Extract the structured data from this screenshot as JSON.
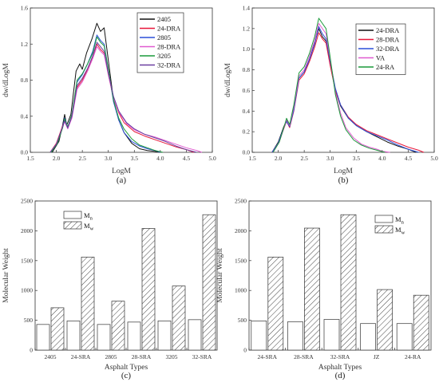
{
  "chart_data": [
    {
      "id": "a",
      "type": "line",
      "caption": "(a)",
      "xlabel": "LogM",
      "ylabel": "dw/dLogM",
      "xlim": [
        1.5,
        5.0
      ],
      "ylim": [
        0,
        1.6
      ],
      "xticks": [
        "1.5",
        "2.0",
        "2.5",
        "3.0",
        "3.5",
        "4.0",
        "4.5",
        "5.0"
      ],
      "yticks": [
        "0.0",
        "0.4",
        "0.8",
        "1.2",
        "1.6"
      ],
      "legend_position": "top-right",
      "series": [
        {
          "name": "2405",
          "color": "#111111",
          "x": [
            1.92,
            2.05,
            2.12,
            2.16,
            2.2,
            2.28,
            2.38,
            2.45,
            2.5,
            2.58,
            2.68,
            2.78,
            2.85,
            2.92,
            3.0,
            3.1,
            3.2,
            3.3,
            3.45,
            3.6,
            3.75,
            3.9,
            4.0
          ],
          "y": [
            0.0,
            0.12,
            0.3,
            0.42,
            0.3,
            0.42,
            0.9,
            0.98,
            0.92,
            1.1,
            1.25,
            1.43,
            1.34,
            1.38,
            1.02,
            0.58,
            0.36,
            0.22,
            0.1,
            0.04,
            0.02,
            0.01,
            0.0
          ]
        },
        {
          "name": "24-DRA",
          "color": "#e8173a",
          "x": [
            1.88,
            2.0,
            2.1,
            2.16,
            2.22,
            2.3,
            2.4,
            2.5,
            2.6,
            2.7,
            2.78,
            2.85,
            2.92,
            3.0,
            3.1,
            3.2,
            3.3,
            3.5,
            3.7,
            3.9,
            4.1,
            4.3,
            4.5,
            4.65
          ],
          "y": [
            0.0,
            0.1,
            0.26,
            0.36,
            0.27,
            0.4,
            0.72,
            0.8,
            0.92,
            1.06,
            1.2,
            1.14,
            1.1,
            0.86,
            0.6,
            0.44,
            0.33,
            0.23,
            0.18,
            0.14,
            0.1,
            0.06,
            0.03,
            0.0
          ]
        },
        {
          "name": "2805",
          "color": "#2b4fd8",
          "x": [
            1.9,
            2.02,
            2.12,
            2.16,
            2.22,
            2.3,
            2.4,
            2.5,
            2.6,
            2.7,
            2.78,
            2.85,
            2.92,
            3.0,
            3.1,
            3.2,
            3.3,
            3.45,
            3.6,
            3.75,
            3.9,
            4.0
          ],
          "y": [
            0.0,
            0.1,
            0.28,
            0.38,
            0.28,
            0.42,
            0.78,
            0.86,
            0.98,
            1.12,
            1.3,
            1.24,
            1.2,
            0.92,
            0.56,
            0.36,
            0.22,
            0.12,
            0.07,
            0.04,
            0.02,
            0.0
          ]
        },
        {
          "name": "28-DRA",
          "color": "#e05ad0",
          "x": [
            1.88,
            2.0,
            2.1,
            2.16,
            2.22,
            2.3,
            2.4,
            2.5,
            2.6,
            2.7,
            2.78,
            2.85,
            2.92,
            3.0,
            3.1,
            3.2,
            3.35,
            3.5,
            3.7,
            3.9,
            4.1,
            4.3,
            4.5,
            4.7,
            4.8
          ],
          "y": [
            0.0,
            0.09,
            0.24,
            0.34,
            0.26,
            0.38,
            0.7,
            0.78,
            0.9,
            1.04,
            1.17,
            1.12,
            1.08,
            0.86,
            0.6,
            0.45,
            0.32,
            0.25,
            0.2,
            0.17,
            0.13,
            0.09,
            0.05,
            0.02,
            0.0
          ]
        },
        {
          "name": "3205",
          "color": "#1a9a3a",
          "x": [
            1.9,
            2.02,
            2.12,
            2.16,
            2.22,
            2.3,
            2.4,
            2.5,
            2.6,
            2.7,
            2.78,
            2.85,
            2.92,
            3.0,
            3.1,
            3.2,
            3.3,
            3.45,
            3.6,
            3.75,
            3.9,
            4.05
          ],
          "y": [
            0.0,
            0.1,
            0.27,
            0.37,
            0.28,
            0.42,
            0.8,
            0.87,
            0.98,
            1.1,
            1.28,
            1.22,
            1.18,
            0.92,
            0.58,
            0.38,
            0.26,
            0.15,
            0.08,
            0.05,
            0.02,
            0.0
          ]
        },
        {
          "name": "32-DRA",
          "color": "#6a3fa0",
          "x": [
            1.88,
            2.0,
            2.1,
            2.16,
            2.22,
            2.3,
            2.4,
            2.5,
            2.6,
            2.7,
            2.78,
            2.85,
            2.92,
            3.0,
            3.1,
            3.2,
            3.35,
            3.5,
            3.7,
            3.9,
            4.1,
            4.3,
            4.5,
            4.7
          ],
          "y": [
            0.0,
            0.09,
            0.25,
            0.35,
            0.27,
            0.4,
            0.74,
            0.82,
            0.93,
            1.07,
            1.22,
            1.17,
            1.12,
            0.88,
            0.62,
            0.46,
            0.33,
            0.26,
            0.2,
            0.16,
            0.12,
            0.07,
            0.03,
            0.0
          ]
        }
      ]
    },
    {
      "id": "b",
      "type": "line",
      "caption": "(b)",
      "xlabel": "LogM",
      "ylabel": "dw/dLogM",
      "xlim": [
        1.5,
        5.0
      ],
      "ylim": [
        0,
        1.4
      ],
      "xticks": [
        "1.5",
        "2.0",
        "2.5",
        "3.0",
        "3.5",
        "4.0",
        "4.5",
        "5.0"
      ],
      "yticks": [
        "0.0",
        "0.2",
        "0.4",
        "0.6",
        "0.8",
        "1.0",
        "1.2",
        "1.4"
      ],
      "legend_position": "right",
      "series": [
        {
          "name": "24-DRA",
          "color": "#111111",
          "x": [
            1.88,
            2.0,
            2.1,
            2.16,
            2.22,
            2.3,
            2.4,
            2.5,
            2.6,
            2.7,
            2.78,
            2.85,
            2.92,
            3.0,
            3.1,
            3.2,
            3.35,
            3.5,
            3.7,
            3.9,
            4.1,
            4.3,
            4.5,
            4.65
          ],
          "y": [
            0.0,
            0.1,
            0.24,
            0.31,
            0.25,
            0.42,
            0.72,
            0.78,
            0.9,
            1.06,
            1.2,
            1.12,
            1.08,
            0.85,
            0.6,
            0.45,
            0.33,
            0.26,
            0.2,
            0.15,
            0.1,
            0.06,
            0.03,
            0.0
          ]
        },
        {
          "name": "28-DRA",
          "color": "#e8173a",
          "x": [
            1.88,
            2.0,
            2.1,
            2.16,
            2.22,
            2.3,
            2.4,
            2.5,
            2.6,
            2.7,
            2.78,
            2.85,
            2.92,
            3.0,
            3.1,
            3.2,
            3.35,
            3.5,
            3.7,
            3.9,
            4.1,
            4.3,
            4.5,
            4.7,
            4.8
          ],
          "y": [
            0.0,
            0.09,
            0.22,
            0.3,
            0.24,
            0.4,
            0.7,
            0.76,
            0.88,
            1.02,
            1.16,
            1.1,
            1.06,
            0.84,
            0.6,
            0.46,
            0.34,
            0.27,
            0.21,
            0.17,
            0.13,
            0.09,
            0.05,
            0.02,
            0.0
          ]
        },
        {
          "name": "32-DRA",
          "color": "#2b4fd8",
          "x": [
            1.88,
            2.0,
            2.1,
            2.16,
            2.22,
            2.3,
            2.4,
            2.5,
            2.6,
            2.7,
            2.78,
            2.85,
            2.92,
            3.0,
            3.1,
            3.2,
            3.35,
            3.5,
            3.7,
            3.9,
            4.1,
            4.3,
            4.5,
            4.7
          ],
          "y": [
            0.0,
            0.09,
            0.23,
            0.3,
            0.25,
            0.41,
            0.72,
            0.78,
            0.9,
            1.05,
            1.22,
            1.15,
            1.1,
            0.88,
            0.62,
            0.46,
            0.33,
            0.26,
            0.2,
            0.16,
            0.12,
            0.07,
            0.03,
            0.0
          ]
        },
        {
          "name": "VA",
          "color": "#e05ad0",
          "x": [
            1.9,
            2.02,
            2.12,
            2.16,
            2.22,
            2.3,
            2.4,
            2.5,
            2.6,
            2.7,
            2.78,
            2.85,
            2.92,
            3.0,
            3.1,
            3.2,
            3.3,
            3.45,
            3.6,
            3.75,
            3.9,
            4.0,
            4.15
          ],
          "y": [
            0.0,
            0.1,
            0.25,
            0.32,
            0.26,
            0.44,
            0.74,
            0.8,
            0.93,
            1.08,
            1.25,
            1.2,
            1.15,
            0.9,
            0.58,
            0.38,
            0.24,
            0.14,
            0.08,
            0.05,
            0.03,
            0.01,
            0.0
          ]
        },
        {
          "name": "24-RA",
          "color": "#1a9a3a",
          "x": [
            1.9,
            2.02,
            2.12,
            2.16,
            2.22,
            2.3,
            2.4,
            2.5,
            2.6,
            2.7,
            2.78,
            2.85,
            2.92,
            3.0,
            3.1,
            3.2,
            3.3,
            3.45,
            3.6,
            3.75,
            3.9,
            4.05
          ],
          "y": [
            0.0,
            0.1,
            0.26,
            0.33,
            0.27,
            0.46,
            0.77,
            0.83,
            0.96,
            1.12,
            1.3,
            1.25,
            1.2,
            0.92,
            0.56,
            0.35,
            0.22,
            0.12,
            0.07,
            0.04,
            0.02,
            0.0
          ]
        }
      ]
    },
    {
      "id": "c",
      "type": "bar",
      "caption": "(c)",
      "xlabel": "Asphalt Types",
      "ylabel": "Molecular Weight",
      "ylim": [
        0,
        2500
      ],
      "yticks": [
        "0",
        "500",
        "1000",
        "1500",
        "2000",
        "2500"
      ],
      "categories": [
        "2405",
        "24-SRA",
        "2805",
        "28-SRA",
        "3205",
        "32-SRA"
      ],
      "legend_position": "top-left",
      "series": [
        {
          "name": "Mn",
          "name_base": "M",
          "name_sub": "n",
          "pattern": "none",
          "values": [
            430,
            490,
            430,
            470,
            490,
            510
          ]
        },
        {
          "name": "Mw",
          "name_base": "M",
          "name_sub": "w",
          "pattern": "hatch",
          "values": [
            710,
            1560,
            820,
            2040,
            1075,
            2270
          ]
        }
      ]
    },
    {
      "id": "d",
      "type": "bar",
      "caption": "(d)",
      "xlabel": "Asphalt Types",
      "ylabel": "Molecular Weight",
      "ylim": [
        0,
        2500
      ],
      "yticks": [
        "0",
        "500",
        "1000",
        "1500",
        "2000",
        "2500"
      ],
      "categories": [
        "24-SRA",
        "28-SRA",
        "32-SRA",
        "JZ",
        "24-RA"
      ],
      "legend_position": "top-right",
      "series": [
        {
          "name": "Mn",
          "name_base": "M",
          "name_sub": "n",
          "pattern": "none",
          "values": [
            490,
            475,
            515,
            445,
            445
          ]
        },
        {
          "name": "Mw",
          "name_base": "M",
          "name_sub": "w",
          "pattern": "hatch",
          "values": [
            1560,
            2045,
            2270,
            1015,
            920
          ]
        }
      ]
    }
  ]
}
